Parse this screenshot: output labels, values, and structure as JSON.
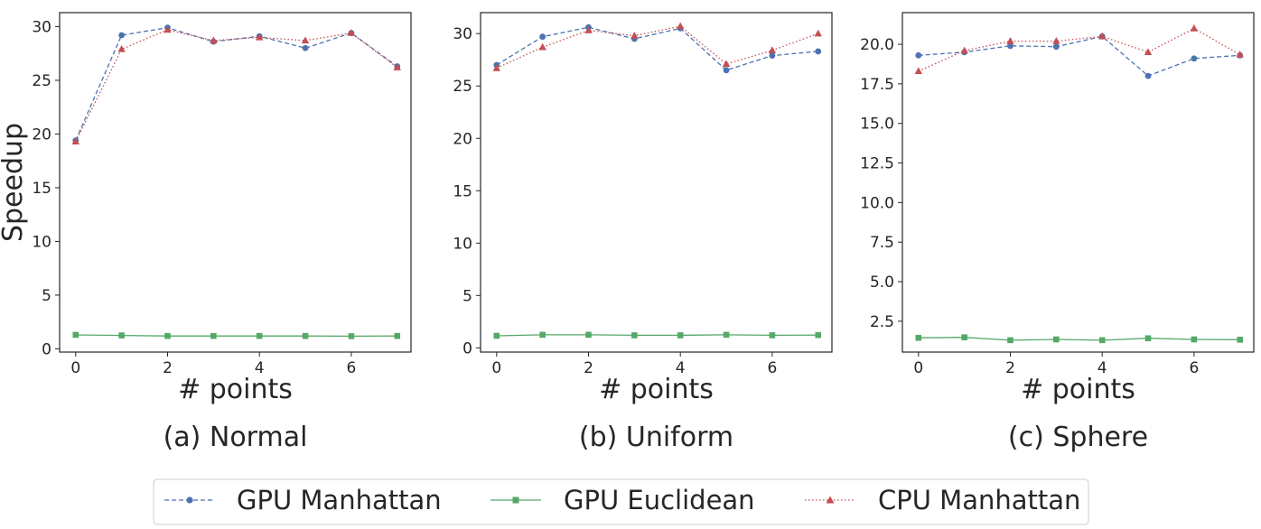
{
  "legend": {
    "placement": "bottom-center",
    "entries": [
      "GPU Manhattan",
      "GPU Euclidean",
      "CPU Manhattan"
    ]
  },
  "series_styles": [
    {
      "color": "#4c72b0",
      "dash": "dashed",
      "marker": "circle"
    },
    {
      "color": "#55a868",
      "dash": "solid",
      "marker": "square"
    },
    {
      "color": "#c44e52",
      "dash": "dotted",
      "marker": "triangle"
    }
  ],
  "chart_data": [
    {
      "type": "line",
      "caption": "(a) Normal",
      "xlabel": "# points",
      "ylabel": "Speedup",
      "xlim": [
        -0.35,
        7.3
      ],
      "ylim": [
        -0.3,
        31.3
      ],
      "xticks": [
        0,
        2,
        4,
        6
      ],
      "yticks": [
        0,
        5,
        10,
        15,
        20,
        25,
        30
      ],
      "ytick_labels": [
        "0",
        "5",
        "10",
        "15",
        "20",
        "25",
        "30"
      ],
      "x": [
        0,
        1,
        2,
        3,
        4,
        5,
        6,
        7
      ],
      "series": [
        {
          "name": "GPU Manhattan",
          "values": [
            19.4,
            29.2,
            29.9,
            28.6,
            29.1,
            28.0,
            29.4,
            26.3
          ]
        },
        {
          "name": "GPU Euclidean",
          "values": [
            1.3,
            1.25,
            1.2,
            1.2,
            1.2,
            1.2,
            1.18,
            1.2
          ]
        },
        {
          "name": "CPU Manhattan",
          "values": [
            19.3,
            27.9,
            29.7,
            28.7,
            29.0,
            28.7,
            29.4,
            26.2
          ]
        }
      ]
    },
    {
      "type": "line",
      "caption": "(b) Uniform",
      "xlabel": "# points",
      "ylabel": "",
      "xlim": [
        -0.35,
        7.3
      ],
      "ylim": [
        -0.4,
        32.0
      ],
      "xticks": [
        0,
        2,
        4,
        6
      ],
      "yticks": [
        0,
        5,
        10,
        15,
        20,
        25,
        30
      ],
      "ytick_labels": [
        "0",
        "5",
        "10",
        "15",
        "20",
        "25",
        "30"
      ],
      "x": [
        0,
        1,
        2,
        3,
        4,
        5,
        6,
        7
      ],
      "series": [
        {
          "name": "GPU Manhattan",
          "values": [
            27.0,
            29.7,
            30.6,
            29.5,
            30.5,
            26.5,
            27.9,
            28.3
          ]
        },
        {
          "name": "GPU Euclidean",
          "values": [
            1.15,
            1.25,
            1.25,
            1.2,
            1.2,
            1.25,
            1.2,
            1.22
          ]
        },
        {
          "name": "CPU Manhattan",
          "values": [
            26.7,
            28.7,
            30.3,
            29.8,
            30.7,
            27.1,
            28.4,
            30.0
          ]
        }
      ]
    },
    {
      "type": "line",
      "caption": "(c) Sphere",
      "xlabel": "# points",
      "ylabel": "",
      "xlim": [
        -0.35,
        7.3
      ],
      "ylim": [
        0.55,
        22.0
      ],
      "xticks": [
        0,
        2,
        4,
        6
      ],
      "yticks": [
        2.5,
        5.0,
        7.5,
        10.0,
        12.5,
        15.0,
        17.5,
        20.0
      ],
      "ytick_labels": [
        "2.5",
        "5.0",
        "7.5",
        "10.0",
        "12.5",
        "15.0",
        "17.5",
        "20.0"
      ],
      "x": [
        0,
        1,
        2,
        3,
        4,
        5,
        6,
        7
      ],
      "series": [
        {
          "name": "GPU Manhattan",
          "values": [
            19.3,
            19.5,
            19.9,
            19.85,
            20.5,
            18.0,
            19.1,
            19.3
          ]
        },
        {
          "name": "GPU Euclidean",
          "values": [
            1.45,
            1.48,
            1.3,
            1.35,
            1.3,
            1.42,
            1.35,
            1.33
          ]
        },
        {
          "name": "CPU Manhattan",
          "values": [
            18.3,
            19.6,
            20.2,
            20.2,
            20.5,
            19.5,
            21.0,
            19.35
          ]
        }
      ]
    }
  ]
}
